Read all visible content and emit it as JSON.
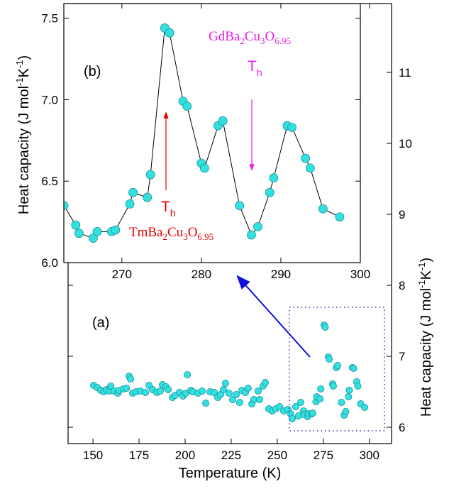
{
  "chart_data": [
    {
      "type": "scatter",
      "panel_label": "(a)",
      "x_label": "Temperature (K)",
      "y_label": [
        "Heat capacity (J mol",
        "-1",
        "K",
        "-1",
        ")"
      ],
      "y_axis_side": "right",
      "xlim": [
        136.5,
        312
      ],
      "ylim": [
        5.77,
        11.97
      ],
      "xticks": [
        150,
        175,
        200,
        225,
        250,
        275,
        300
      ],
      "yticks": [
        6,
        7,
        8,
        9,
        10,
        11
      ],
      "color": "#33e0e0",
      "edge_color": "#1b8f9a",
      "x": [
        150.4,
        152.3,
        154.2,
        155.8,
        157.3,
        158.8,
        159.6,
        161.5,
        163.5,
        164.2,
        166.5,
        168.1,
        169.6,
        170.4,
        171.5,
        173.5,
        175.8,
        178.5,
        180.4,
        182.3,
        184.6,
        186.5,
        187.7,
        189.6,
        190.8,
        193.1,
        194.6,
        196.9,
        198.8,
        200.4,
        201.2,
        203.1,
        204.2,
        206.9,
        209.2,
        211.2,
        213.5,
        215.8,
        217.7,
        219.2,
        220.8,
        221.9,
        223.8,
        225.8,
        227.7,
        229.6,
        230.8,
        232.7,
        234.2,
        236.2,
        237.3,
        239.6,
        240.4,
        242.3,
        243.5,
        245.4,
        247.3,
        249.2,
        251.2,
        253.5,
        255.8,
        257.3,
        258.1,
        260.0,
        261.5,
        262.7,
        264.2,
        264.6,
        266.4,
        266.9,
        268.7,
        269.2,
        271.0,
        271.4,
        273.2,
        273.6,
        275.4,
        276.0,
        277.7,
        278.2,
        280.0,
        280.4,
        282.1,
        282.7,
        284.8,
        286.3,
        287.1,
        288.6,
        289.1,
        290.8,
        291.4,
        293.1,
        293.7,
        295.3,
        297.4
      ],
      "values": [
        6.59,
        6.56,
        6.52,
        6.5,
        6.53,
        6.51,
        6.58,
        6.51,
        6.48,
        6.52,
        6.54,
        6.55,
        6.72,
        6.68,
        6.48,
        6.5,
        6.51,
        6.49,
        6.59,
        6.53,
        6.49,
        6.51,
        6.6,
        6.57,
        6.53,
        6.42,
        6.45,
        6.49,
        6.44,
        6.48,
        6.74,
        6.52,
        6.5,
        6.48,
        6.51,
        6.34,
        6.5,
        6.49,
        6.42,
        6.46,
        6.53,
        6.62,
        6.48,
        6.39,
        6.46,
        6.35,
        6.52,
        6.49,
        6.55,
        6.33,
        6.39,
        6.51,
        6.39,
        6.58,
        6.63,
        6.26,
        6.23,
        6.26,
        6.29,
        6.23,
        6.25,
        6.19,
        6.12,
        6.29,
        6.16,
        6.35,
        6.23,
        6.18,
        6.15,
        6.19,
        6.19,
        6.2,
        6.36,
        6.43,
        6.4,
        6.54,
        7.44,
        7.41,
        6.99,
        6.96,
        6.61,
        6.58,
        6.84,
        6.87,
        6.35,
        6.17,
        6.22,
        6.43,
        6.52,
        6.84,
        6.83,
        6.64,
        6.58,
        6.33,
        6.28
      ]
    },
    {
      "type": "line",
      "panel_label": "(b)",
      "y_label": [
        "Heat capacity (J mol",
        "-1",
        "K",
        "-1",
        ")"
      ],
      "y_axis_side": "left",
      "xlim": [
        262.7,
        300
      ],
      "ylim": [
        6.0,
        7.59
      ],
      "xticks": [
        270,
        280,
        290,
        300
      ],
      "yticks": [
        {
          "value": 6,
          "label": "6.0"
        },
        6.5,
        {
          "value": 7,
          "label": "7.0"
        },
        7.5
      ],
      "color": "#33e0e0",
      "edge_color": "#1b8f9a",
      "line_color": "#000000",
      "x": [
        262.7,
        264.2,
        264.6,
        266.4,
        266.9,
        268.7,
        269.2,
        271.0,
        271.4,
        273.2,
        273.6,
        275.4,
        276.0,
        277.7,
        278.2,
        280.0,
        280.4,
        282.1,
        282.7,
        284.8,
        286.3,
        287.1,
        288.6,
        289.1,
        290.8,
        291.4,
        293.1,
        293.7,
        295.3,
        297.4
      ],
      "values": [
        6.35,
        6.23,
        6.18,
        6.15,
        6.19,
        6.19,
        6.2,
        6.36,
        6.43,
        6.4,
        6.54,
        7.44,
        7.41,
        6.99,
        6.96,
        6.61,
        6.58,
        6.84,
        6.87,
        6.35,
        6.17,
        6.22,
        6.43,
        6.52,
        6.84,
        6.83,
        6.64,
        6.58,
        6.33,
        6.28
      ],
      "annotations": {
        "gd_formula": [
          "GdBa",
          "2",
          "Cu",
          "3",
          "O",
          "6.95"
        ],
        "gd_marker": [
          "T",
          "h"
        ],
        "tm_formula": [
          "TmBa",
          "2",
          "Cu",
          "3",
          "O",
          "6.95"
        ],
        "tm_marker": [
          "T",
          "h"
        ]
      }
    }
  ]
}
